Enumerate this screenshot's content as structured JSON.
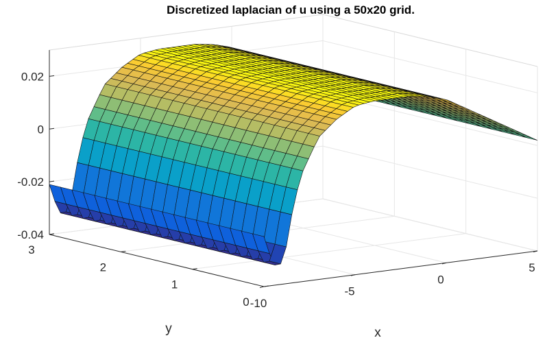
{
  "chart_data": {
    "type": "surface",
    "title": "Discretized laplacian of u using a 50x20 grid.",
    "xlabel": "x",
    "ylabel": "y",
    "zlabel": "",
    "xlim": [
      -10,
      5
    ],
    "ylim": [
      0,
      3
    ],
    "zlim": [
      -0.04,
      0.03
    ],
    "x_ticks": [
      -10,
      -5,
      0,
      5
    ],
    "x_tick_labels": [
      "-10",
      "-5",
      "0",
      "5"
    ],
    "y_ticks": [
      0,
      1,
      2,
      3
    ],
    "y_tick_labels": [
      "0",
      "1",
      "2",
      "3"
    ],
    "z_ticks": [
      -0.04,
      -0.02,
      0,
      0.02
    ],
    "z_tick_labels": [
      "-0.04",
      "-0.02",
      "0",
      "0.02"
    ],
    "grid": "on",
    "colormap": "parula",
    "grid_size": [
      50,
      20
    ],
    "surface_profile": {
      "along": "x",
      "x": [
        -10,
        -9.5,
        -9.2,
        -8.9,
        -8.5,
        -8,
        -7,
        -6,
        -5,
        -4,
        -3,
        -2,
        -1,
        0,
        1,
        2,
        3,
        4,
        5
      ],
      "z": [
        -0.021,
        -0.032,
        -0.033,
        -0.031,
        -0.015,
        0.0,
        0.014,
        0.02,
        0.024,
        0.025,
        0.025,
        0.025,
        0.024,
        0.022,
        0.018,
        0.014,
        0.01,
        0.006,
        0.002
      ],
      "y_variation": "approximately constant in y"
    }
  }
}
